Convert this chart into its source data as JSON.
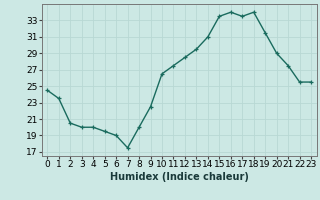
{
  "x": [
    0,
    1,
    2,
    3,
    4,
    5,
    6,
    7,
    8,
    9,
    10,
    11,
    12,
    13,
    14,
    15,
    16,
    17,
    18,
    19,
    20,
    21,
    22,
    23
  ],
  "y": [
    24.5,
    23.5,
    20.5,
    20.0,
    20.0,
    19.5,
    19.0,
    17.5,
    20.0,
    22.5,
    26.5,
    27.5,
    28.5,
    29.5,
    31.0,
    33.5,
    34.0,
    33.5,
    34.0,
    31.5,
    29.0,
    27.5,
    25.5,
    25.5
  ],
  "xlabel": "Humidex (Indice chaleur)",
  "xlim": [
    -0.5,
    23.5
  ],
  "ylim": [
    16.5,
    35.0
  ],
  "yticks": [
    17,
    19,
    21,
    23,
    25,
    27,
    29,
    31,
    33
  ],
  "xticks": [
    0,
    1,
    2,
    3,
    4,
    5,
    6,
    7,
    8,
    9,
    10,
    11,
    12,
    13,
    14,
    15,
    16,
    17,
    18,
    19,
    20,
    21,
    22,
    23
  ],
  "bg_color": "#cce8e4",
  "grid_color": "#b8d8d4",
  "line_color": "#1a6b5e",
  "marker": "+",
  "linewidth": 1.0,
  "label_fontsize": 7,
  "tick_fontsize": 6.5
}
